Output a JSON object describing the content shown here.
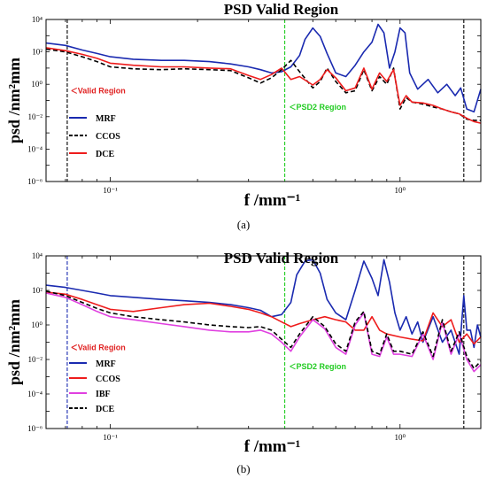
{
  "chart_data": [
    {
      "type": "line",
      "panel_label": "(a)",
      "title": "PSD Valid Region",
      "xlabel": "f /mm⁻¹",
      "ylabel": "psd /nm²mm",
      "xscale": "log",
      "yscale": "log",
      "xlim": [
        0.06,
        1.9
      ],
      "ylim": [
        1e-06,
        10000.0
      ],
      "xticks": [
        {
          "v": 0.1,
          "label": "10⁻¹"
        },
        {
          "v": 1,
          "label": "10⁰"
        }
      ],
      "yticks": [
        {
          "v": 1e-06,
          "label": "10⁻⁶"
        },
        {
          "v": 0.0001,
          "label": "10⁻⁴"
        },
        {
          "v": 0.01,
          "label": "10⁻²"
        },
        {
          "v": 1,
          "label": "10⁰"
        },
        {
          "v": 100,
          "label": "10²"
        },
        {
          "v": 10000,
          "label": "10⁴"
        }
      ],
      "legend_position": "lower-left",
      "annotations": {
        "valid_region": {
          "text": "Valid Region",
          "x": 0.074,
          "y": 0.4,
          "color": "#e02020"
        },
        "psd2_region": {
          "text": "PSD2 Region",
          "x": 0.42,
          "y": 0.04,
          "color": "#22cc22"
        }
      },
      "vertical_lines": [
        {
          "x": 0.071,
          "color": "#000000",
          "style": "dash"
        },
        {
          "x": 0.4,
          "color": "#22cc22",
          "style": "dash"
        },
        {
          "x": 1.66,
          "color": "#000000",
          "style": "dash"
        }
      ],
      "series": [
        {
          "name": "MRF",
          "color": "#1a2ab0",
          "dash": "",
          "x": [
            0.06,
            0.07,
            0.08,
            0.09,
            0.1,
            0.12,
            0.15,
            0.18,
            0.22,
            0.26,
            0.3,
            0.33,
            0.36,
            0.39,
            0.42,
            0.45,
            0.47,
            0.5,
            0.53,
            0.56,
            0.6,
            0.65,
            0.7,
            0.75,
            0.8,
            0.84,
            0.88,
            0.92,
            0.96,
            1.0,
            1.04,
            1.08,
            1.15,
            1.25,
            1.35,
            1.45,
            1.55,
            1.62,
            1.7,
            1.8,
            1.9
          ],
          "y": [
            350,
            250,
            130,
            80,
            50,
            35,
            30,
            30,
            25,
            18,
            12,
            8,
            5,
            6,
            12,
            60,
            600,
            3000,
            900,
            80,
            5,
            3,
            15,
            100,
            400,
            5000,
            1500,
            10,
            100,
            3000,
            1500,
            5,
            0.5,
            2,
            0.3,
            1,
            0.2,
            0.6,
            0.03,
            0.02,
            0.5
          ]
        },
        {
          "name": "CCOS",
          "color": "#000000",
          "dash": "5,3",
          "x": [
            0.06,
            0.07,
            0.08,
            0.09,
            0.1,
            0.12,
            0.15,
            0.18,
            0.22,
            0.26,
            0.3,
            0.33,
            0.36,
            0.39,
            0.42,
            0.45,
            0.5,
            0.53,
            0.56,
            0.6,
            0.65,
            0.7,
            0.75,
            0.8,
            0.85,
            0.9,
            0.95,
            1.0,
            1.05,
            1.1,
            1.2,
            1.3,
            1.4,
            1.5,
            1.6,
            1.7,
            1.8,
            1.9
          ],
          "y": [
            150,
            100,
            50,
            25,
            12,
            9,
            8,
            9,
            8,
            7,
            2.5,
            1.2,
            2.5,
            8,
            30,
            6,
            0.6,
            1.5,
            10,
            1.5,
            0.3,
            0.4,
            8,
            0.4,
            3,
            1,
            10,
            0.03,
            0.15,
            0.08,
            0.06,
            0.04,
            0.03,
            0.02,
            0.015,
            0.007,
            0.006,
            0.006
          ]
        },
        {
          "name": "DCE",
          "color": "#ee1c1c",
          "dash": "",
          "x": [
            0.06,
            0.07,
            0.08,
            0.09,
            0.1,
            0.12,
            0.15,
            0.18,
            0.22,
            0.26,
            0.3,
            0.33,
            0.36,
            0.39,
            0.42,
            0.45,
            0.5,
            0.53,
            0.56,
            0.6,
            0.65,
            0.7,
            0.75,
            0.8,
            0.85,
            0.9,
            0.95,
            1.0,
            1.05,
            1.1,
            1.2,
            1.3,
            1.4,
            1.5,
            1.6,
            1.7,
            1.8,
            1.9
          ],
          "y": [
            180,
            120,
            70,
            40,
            20,
            15,
            12,
            12,
            10,
            9,
            3.5,
            2,
            4,
            10,
            2,
            3,
            0.9,
            2,
            8,
            2.5,
            0.4,
            0.6,
            10,
            0.5,
            5,
            1.5,
            8,
            0.05,
            0.2,
            0.08,
            0.07,
            0.05,
            0.03,
            0.02,
            0.015,
            0.008,
            0.005,
            0.004
          ]
        }
      ]
    },
    {
      "type": "line",
      "panel_label": "(b)",
      "title": "PSD Valid Region",
      "xlabel": "f /mm⁻¹",
      "ylabel": "psd /nm²mm",
      "xscale": "log",
      "yscale": "log",
      "xlim": [
        0.06,
        1.9
      ],
      "ylim": [
        1e-06,
        10000.0
      ],
      "xticks": [
        {
          "v": 0.1,
          "label": "10⁻¹"
        },
        {
          "v": 1,
          "label": "10⁰"
        }
      ],
      "yticks": [
        {
          "v": 1e-06,
          "label": "10⁻⁶"
        },
        {
          "v": 0.0001,
          "label": "10⁻⁴"
        },
        {
          "v": 0.01,
          "label": "10⁻²"
        },
        {
          "v": 1,
          "label": "10⁰"
        },
        {
          "v": 100,
          "label": "10²"
        },
        {
          "v": 10000,
          "label": "10⁴"
        }
      ],
      "legend_position": "lower-left",
      "annotations": {
        "valid_region": {
          "text": "Valid Region",
          "x": 0.074,
          "y": 0.05,
          "color": "#e02020"
        },
        "psd2_region": {
          "text": "PSD2 Region",
          "x": 0.42,
          "y": 0.004,
          "color": "#22cc22"
        }
      },
      "vertical_lines": [
        {
          "x": 0.071,
          "color": "#1a2ab0",
          "style": "dash"
        },
        {
          "x": 0.4,
          "color": "#22cc22",
          "style": "dash"
        },
        {
          "x": 1.66,
          "color": "#000000",
          "style": "dash"
        }
      ],
      "series": [
        {
          "name": "MRF",
          "color": "#1a2ab0",
          "dash": "",
          "x": [
            0.06,
            0.07,
            0.08,
            0.09,
            0.1,
            0.12,
            0.15,
            0.18,
            0.22,
            0.26,
            0.3,
            0.33,
            0.36,
            0.39,
            0.42,
            0.44,
            0.47,
            0.5,
            0.53,
            0.56,
            0.6,
            0.65,
            0.7,
            0.75,
            0.8,
            0.84,
            0.88,
            0.92,
            0.96,
            1.0,
            1.05,
            1.1,
            1.15,
            1.2,
            1.3,
            1.4,
            1.5,
            1.6,
            1.66,
            1.7,
            1.75,
            1.8,
            1.85,
            1.9
          ],
          "y": [
            200,
            150,
            100,
            70,
            50,
            40,
            30,
            25,
            20,
            15,
            10,
            7,
            3,
            4,
            20,
            800,
            5000,
            6000,
            1000,
            30,
            5,
            2,
            100,
            5000,
            500,
            50,
            6000,
            300,
            5,
            0.5,
            3,
            0.3,
            1.5,
            0.1,
            3,
            0.1,
            0.5,
            0.02,
            50,
            0.5,
            0.5,
            0.05,
            1,
            0.2
          ]
        },
        {
          "name": "CCOS",
          "color": "#ee1c1c",
          "dash": "",
          "x": [
            0.06,
            0.07,
            0.08,
            0.09,
            0.1,
            0.12,
            0.15,
            0.18,
            0.22,
            0.26,
            0.3,
            0.33,
            0.36,
            0.39,
            0.42,
            0.45,
            0.5,
            0.55,
            0.6,
            0.65,
            0.7,
            0.75,
            0.8,
            0.85,
            0.9,
            1.0,
            1.1,
            1.2,
            1.3,
            1.4,
            1.5,
            1.6,
            1.7,
            1.8,
            1.9
          ],
          "y": [
            80,
            60,
            30,
            15,
            8,
            6,
            10,
            15,
            18,
            12,
            8,
            5,
            3,
            1.5,
            0.8,
            1.2,
            2,
            3,
            2,
            1.5,
            0.5,
            0.5,
            3,
            0.5,
            0.3,
            0.2,
            0.15,
            0.12,
            5,
            0.8,
            2,
            0.1,
            0.3,
            0.08,
            0.2
          ]
        },
        {
          "name": "IBF",
          "color": "#e040e0",
          "dash": "",
          "x": [
            0.06,
            0.07,
            0.08,
            0.09,
            0.1,
            0.12,
            0.15,
            0.18,
            0.22,
            0.26,
            0.3,
            0.33,
            0.36,
            0.39,
            0.42,
            0.45,
            0.5,
            0.55,
            0.6,
            0.65,
            0.7,
            0.75,
            0.8,
            0.85,
            0.9,
            0.95,
            1.0,
            1.1,
            1.2,
            1.3,
            1.4,
            1.5,
            1.6,
            1.7,
            1.8,
            1.9
          ],
          "y": [
            70,
            40,
            15,
            6,
            3,
            2,
            1.2,
            0.8,
            0.5,
            0.4,
            0.4,
            0.5,
            0.3,
            0.1,
            0.03,
            0.2,
            2,
            0.6,
            0.05,
            0.02,
            1,
            5,
            0.02,
            0.015,
            0.2,
            0.02,
            0.02,
            0.015,
            0.3,
            0.01,
            1.5,
            0.02,
            0.3,
            0.01,
            0.002,
            0.005
          ]
        },
        {
          "name": "DCE",
          "color": "#000000",
          "dash": "5,3",
          "x": [
            0.06,
            0.07,
            0.08,
            0.09,
            0.1,
            0.12,
            0.15,
            0.18,
            0.22,
            0.26,
            0.3,
            0.33,
            0.36,
            0.39,
            0.42,
            0.45,
            0.5,
            0.55,
            0.6,
            0.65,
            0.7,
            0.75,
            0.8,
            0.85,
            0.9,
            0.95,
            1.0,
            1.1,
            1.2,
            1.3,
            1.4,
            1.5,
            1.6,
            1.7,
            1.8,
            1.9
          ],
          "y": [
            90,
            50,
            20,
            9,
            5,
            3,
            2,
            1.5,
            1,
            0.8,
            0.7,
            0.8,
            0.5,
            0.15,
            0.05,
            0.3,
            3,
            0.8,
            0.08,
            0.03,
            1.5,
            6,
            0.03,
            0.02,
            0.3,
            0.03,
            0.03,
            0.02,
            0.4,
            0.015,
            2,
            0.03,
            0.4,
            0.015,
            0.003,
            0.008
          ]
        }
      ]
    }
  ]
}
